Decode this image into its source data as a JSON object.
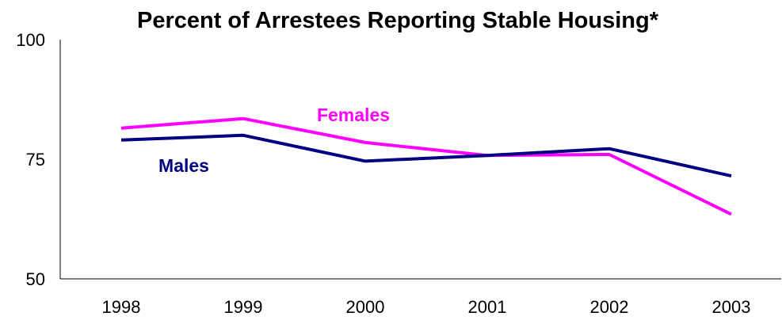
{
  "chart_data": {
    "type": "line",
    "title": "Percent of Arrestees Reporting Stable Housing*",
    "xlabel": "",
    "ylabel": "",
    "categories": [
      "1998",
      "1999",
      "2000",
      "2001",
      "2002",
      "2003"
    ],
    "ylim": [
      50,
      100
    ],
    "yticks": [
      "50",
      "75",
      "100"
    ],
    "grid": false,
    "legend": "inline labels",
    "series": [
      {
        "name": "Females",
        "color": "#ff00ff",
        "values": [
          81.5,
          83.5,
          78.5,
          75.8,
          76,
          63.5
        ]
      },
      {
        "name": "Males",
        "color": "#000080",
        "values": [
          79,
          80,
          74.6,
          75.8,
          77.2,
          71.5
        ]
      }
    ]
  }
}
